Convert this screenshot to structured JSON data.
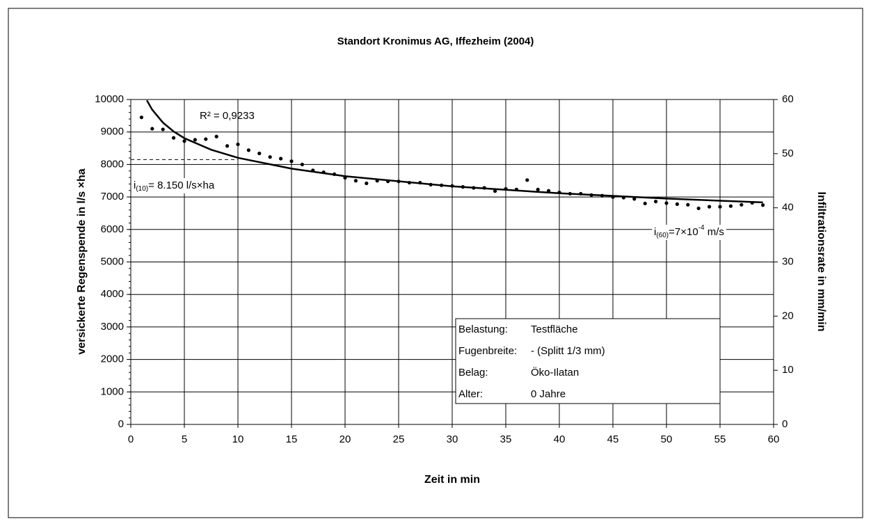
{
  "chart_data": {
    "type": "scatter",
    "title": "Standort Kronimus AG, Iffezheim (2004)",
    "x_label": "Zeit in min",
    "y_label": "versickerte Regenspende in l/s   ×ha",
    "y2_label": "Infiltrationsrate in mm/min",
    "xlim": [
      0,
      60
    ],
    "xticks": [
      0,
      5,
      10,
      15,
      20,
      25,
      30,
      35,
      40,
      45,
      50,
      55,
      60
    ],
    "ylim": [
      0,
      10000
    ],
    "yticks": [
      0,
      1000,
      2000,
      3000,
      4000,
      5000,
      6000,
      7000,
      8000,
      9000,
      10000
    ],
    "y2lim": [
      0,
      60
    ],
    "y2ticks": [
      0,
      10,
      20,
      30,
      40,
      50,
      60
    ],
    "grid": true,
    "series": [
      {
        "color": "#000000",
        "x": [
          1,
          2,
          3,
          4,
          5,
          6,
          7,
          8,
          9,
          10,
          11,
          12,
          13,
          14,
          15,
          16,
          17,
          18,
          19,
          20,
          21,
          22,
          23,
          24,
          25,
          26,
          27,
          28,
          29,
          30,
          31,
          32,
          33,
          34,
          35,
          36,
          37,
          38,
          39,
          40,
          41,
          42,
          43,
          44,
          45,
          46,
          47,
          48,
          49,
          50,
          51,
          52,
          53,
          54,
          55,
          56,
          57,
          58,
          59
        ],
        "values": [
          9450,
          9100,
          9080,
          8820,
          8720,
          8760,
          8780,
          8860,
          8570,
          8620,
          8440,
          8340,
          8230,
          8180,
          8100,
          8000,
          7820,
          7760,
          7700,
          7590,
          7500,
          7420,
          7500,
          7480,
          7480,
          7440,
          7440,
          7380,
          7360,
          7340,
          7310,
          7280,
          7280,
          7180,
          7250,
          7230,
          7520,
          7230,
          7190,
          7140,
          7100,
          7100,
          7060,
          7040,
          7000,
          6980,
          6940,
          6800,
          6860,
          6810,
          6780,
          6760,
          6650,
          6700,
          6700,
          6720,
          6760,
          6820,
          6750
        ]
      },
      {
        "type": "line",
        "color": "#000000",
        "x": [
          1.5,
          2,
          3,
          4,
          5,
          7.5,
          10,
          15,
          20,
          30,
          40,
          50,
          59
        ],
        "values": [
          9975,
          9685,
          9290,
          9015,
          8810,
          8453,
          8205,
          7872,
          7639,
          7327,
          7113,
          6950,
          6833
        ]
      }
    ],
    "annotations": {
      "r2": "R² = 0,9233",
      "i10": {
        "base": "i",
        "sub": "(10)",
        "text": "= 8.150 l/s×ha",
        "value": 8150
      },
      "i60": {
        "base": "i",
        "sub": "(60)",
        "text": "=7×10",
        "sup": "-4",
        "rest": " m/s"
      }
    },
    "info_box": [
      [
        "Belastung:",
        "Testfläche"
      ],
      [
        "Fugenbreite:",
        "- (Splitt 1/3 mm)"
      ],
      [
        "Belag:",
        "Öko-Ilatan"
      ],
      [
        "Alter:",
        "0 Jahre"
      ]
    ]
  }
}
